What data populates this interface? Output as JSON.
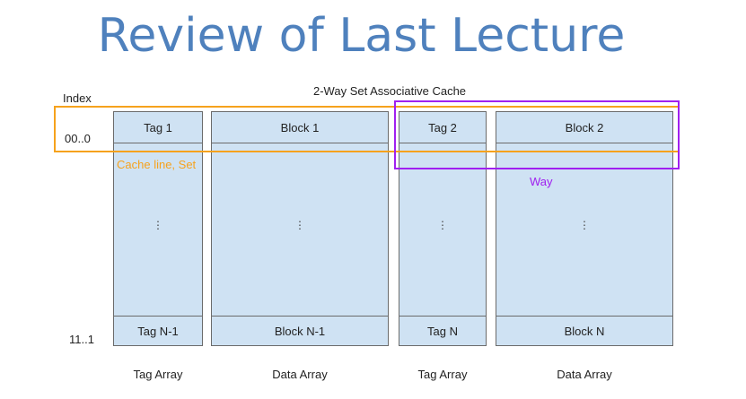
{
  "slide": {
    "title": "Review of Last Lecture"
  },
  "diagram": {
    "heading": "2-Way Set Associative Cache",
    "index_label": "Index",
    "row_first_index": "00..0",
    "row_last_index": "11..1",
    "columns": [
      {
        "top": "Tag 1",
        "bottom": "Tag N-1",
        "footer": "Tag Array"
      },
      {
        "top": "Block 1",
        "bottom": "Block N-1",
        "footer": "Data Array"
      },
      {
        "top": "Tag 2",
        "bottom": "Tag N",
        "footer": "Tag Array"
      },
      {
        "top": "Block 2",
        "bottom": "Block N",
        "footer": "Data Array"
      }
    ],
    "ellipsis": "⋮",
    "cache_line_label": "Cache line, Set",
    "way_label": "Way",
    "colors": {
      "cell_fill": "#cfe2f3",
      "cache_line": "#f6a21d",
      "way": "#a020f0",
      "title": "#4f81bd"
    }
  }
}
